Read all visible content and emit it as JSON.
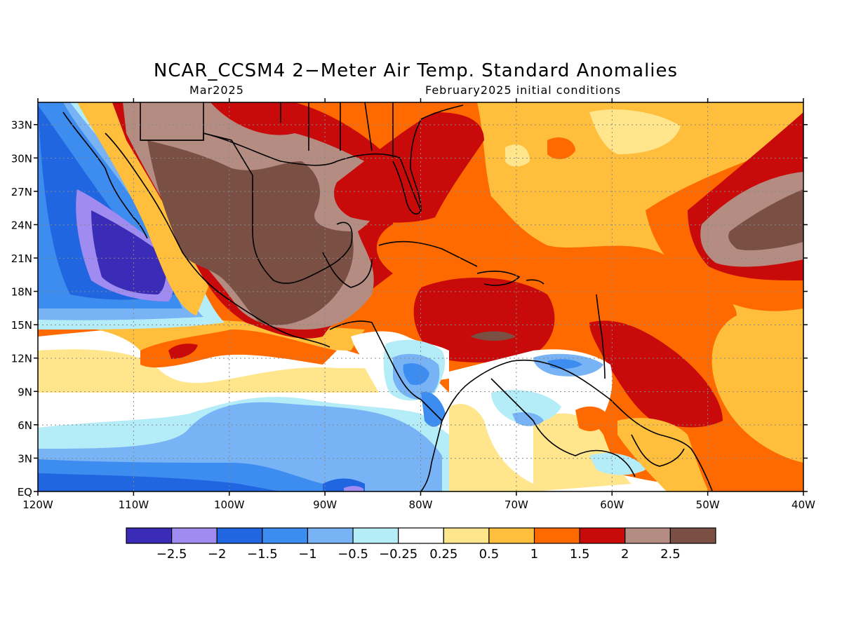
{
  "title": "NCAR_CCSM4 2−Meter Air Temp. Standard Anomalies",
  "subtitle_left": "Mar2025",
  "subtitle_right": "February2025 initial conditions",
  "lat_labels": [
    "33N",
    "30N",
    "27N",
    "24N",
    "21N",
    "18N",
    "15N",
    "12N",
    "9N",
    "6N",
    "3N",
    "EQ"
  ],
  "lon_labels": [
    "120W",
    "110W",
    "100W",
    "90W",
    "80W",
    "70W",
    "60W",
    "50W",
    "40W"
  ],
  "colorbar": {
    "labels": [
      "−2.5",
      "−2",
      "−1.5",
      "−1",
      "−0.5",
      "−0.25",
      "0.25",
      "0.5",
      "1",
      "1.5",
      "2",
      "2.5"
    ],
    "colors": [
      "#3b2cb8",
      "#a08cf0",
      "#1f66e0",
      "#3d8cf0",
      "#78b4f5",
      "#b4ecf8",
      "#ffffff",
      "#ffe68c",
      "#ffbe3c",
      "#ff6a00",
      "#c80a0a",
      "#b48c82",
      "#7a5044"
    ]
  }
}
